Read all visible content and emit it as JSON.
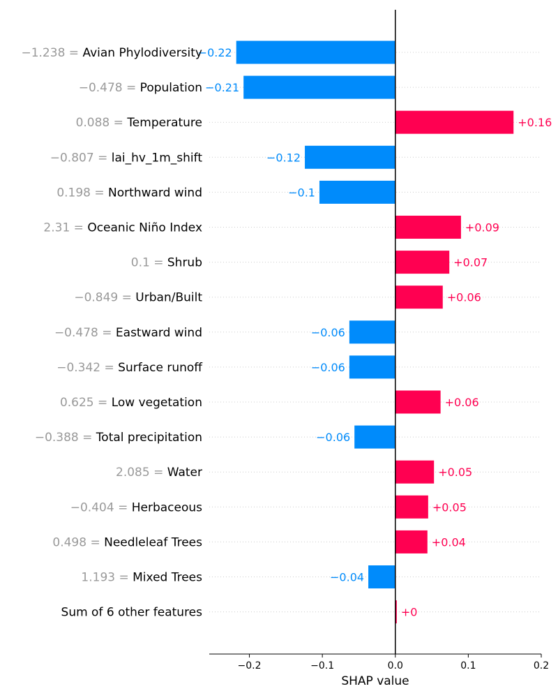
{
  "chart_data": {
    "type": "bar",
    "orientation": "horizontal",
    "xlabel": "SHAP value",
    "xlim": [
      -0.255,
      0.2
    ],
    "xticks": [
      -0.2,
      -0.1,
      0.0,
      0.1,
      0.2
    ],
    "xtick_labels": [
      "−0.2",
      "−0.1",
      "0.0",
      "0.1",
      "0.2"
    ],
    "grid": "dotted horizontal row guides",
    "colors": {
      "positive": "#ff0051",
      "negative": "#008bfb",
      "value_text": "#999999",
      "axis": "#000000"
    },
    "features": [
      {
        "value": "−1.238",
        "name": "Avian Phylodiversity",
        "shap": -0.218,
        "label": "−0.22"
      },
      {
        "value": "−0.478",
        "name": "Population",
        "shap": -0.208,
        "label": "−0.21"
      },
      {
        "value": "0.088",
        "name": "Temperature",
        "shap": 0.162,
        "label": "+0.16"
      },
      {
        "value": "−0.807",
        "name": "lai_hv_1m_shift",
        "shap": -0.124,
        "label": "−0.12"
      },
      {
        "value": "0.198",
        "name": "Northward wind",
        "shap": -0.104,
        "label": "−0.1"
      },
      {
        "value": "2.31",
        "name": "Oceanic Niño Index",
        "shap": 0.09,
        "label": "+0.09"
      },
      {
        "value": "0.1",
        "name": "Shrub",
        "shap": 0.074,
        "label": "+0.07"
      },
      {
        "value": "−0.849",
        "name": "Urban/Built",
        "shap": 0.065,
        "label": "+0.06"
      },
      {
        "value": "−0.478",
        "name": "Eastward wind",
        "shap": -0.063,
        "label": "−0.06"
      },
      {
        "value": "−0.342",
        "name": "Surface runoff",
        "shap": -0.063,
        "label": "−0.06"
      },
      {
        "value": "0.625",
        "name": "Low vegetation",
        "shap": 0.062,
        "label": "+0.06"
      },
      {
        "value": "−0.388",
        "name": "Total precipitation",
        "shap": -0.056,
        "label": "−0.06"
      },
      {
        "value": "2.085",
        "name": "Water",
        "shap": 0.053,
        "label": "+0.05"
      },
      {
        "value": "−0.404",
        "name": "Herbaceous",
        "shap": 0.045,
        "label": "+0.05"
      },
      {
        "value": "0.498",
        "name": "Needleleaf Trees",
        "shap": 0.044,
        "label": "+0.04"
      },
      {
        "value": "1.193",
        "name": "Mixed Trees",
        "shap": -0.037,
        "label": "−0.04"
      },
      {
        "value": "",
        "name": "Sum of 6 other features",
        "shap": 0.002,
        "label": "+0"
      }
    ]
  }
}
